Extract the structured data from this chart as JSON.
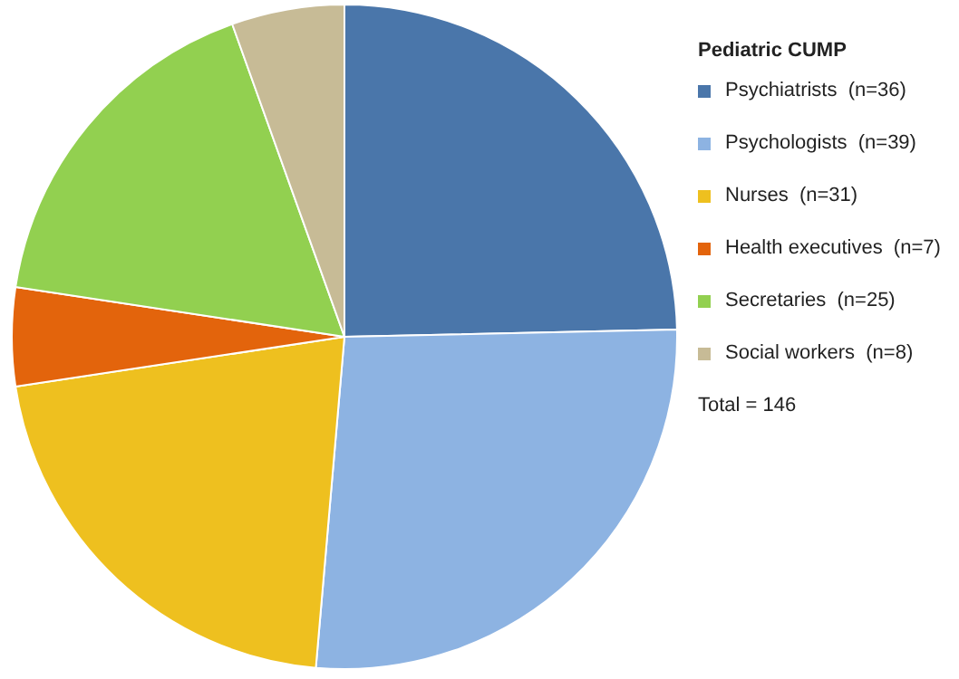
{
  "chart_data": {
    "type": "pie",
    "legend_title": "Pediatric CUMP",
    "legend": "right",
    "categories": [
      "Psychiatrists  (n=36)",
      "Psychologists  (n=39)",
      "Nurses  (n=31)",
      "Health executives  (n=7)",
      "Secretaries  (n=25)",
      "Social workers  (n=8)"
    ],
    "values": [
      36,
      39,
      31,
      7,
      25,
      8
    ],
    "colors": [
      "#4a76aa",
      "#8db3e2",
      "#eec01f",
      "#e3640c",
      "#92d050",
      "#c7bb96"
    ],
    "annotations": [
      "Total = 146"
    ]
  }
}
